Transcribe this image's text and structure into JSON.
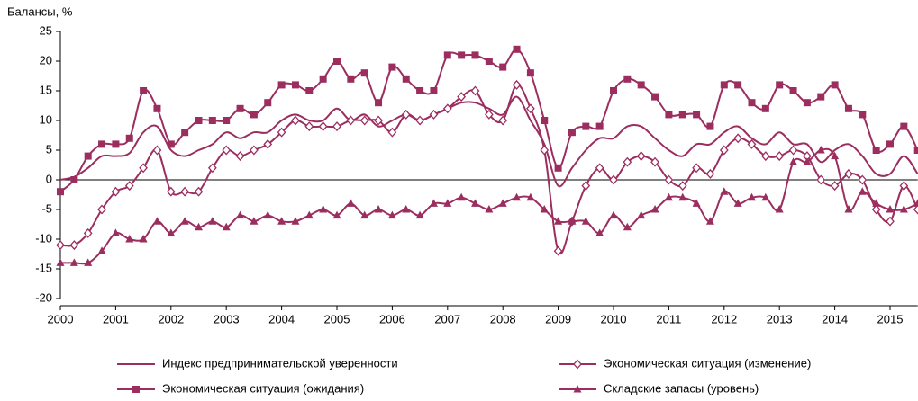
{
  "chart_data": {
    "type": "line",
    "y_axis_label": "Балансы, %",
    "x": [
      2000,
      2000.25,
      2000.5,
      2000.75,
      2001,
      2001.25,
      2001.5,
      2001.75,
      2002,
      2002.25,
      2002.5,
      2002.75,
      2003,
      2003.25,
      2003.5,
      2003.75,
      2004,
      2004.25,
      2004.5,
      2004.75,
      2005,
      2005.25,
      2005.5,
      2005.75,
      2006,
      2006.25,
      2006.5,
      2006.75,
      2007,
      2007.25,
      2007.5,
      2007.75,
      2008,
      2008.25,
      2008.5,
      2008.75,
      2009,
      2009.25,
      2009.5,
      2009.75,
      2010,
      2010.25,
      2010.5,
      2010.75,
      2011,
      2011.25,
      2011.5,
      2011.75,
      2012,
      2012.25,
      2012.5,
      2012.75,
      2013,
      2013.25,
      2013.5,
      2013.75,
      2014,
      2014.25,
      2014.5,
      2014.75,
      2015,
      2015.25,
      2015.5
    ],
    "xlim": [
      2000,
      2015.5
    ],
    "xticks": [
      2000,
      2001,
      2002,
      2003,
      2004,
      2005,
      2006,
      2007,
      2008,
      2009,
      2010,
      2011,
      2012,
      2013,
      2014,
      2015
    ],
    "ylim": [
      -20,
      25
    ],
    "yticks": [
      -20,
      -15,
      -10,
      -5,
      0,
      5,
      10,
      15,
      20,
      25
    ],
    "series": [
      {
        "name": "Индекс предпринимательской уверенности",
        "color": "#9b2d5f",
        "marker": "none",
        "values": [
          0,
          0.5,
          2,
          4,
          4,
          4.5,
          8,
          9,
          5,
          4,
          5,
          6,
          8,
          7,
          8,
          8,
          10,
          11,
          10,
          10,
          12,
          10,
          11,
          9,
          10,
          11,
          10,
          11,
          12,
          13,
          13,
          12,
          11,
          14,
          10,
          6,
          -1,
          2,
          5,
          7,
          7,
          9,
          9,
          7,
          5,
          4,
          6,
          6,
          8,
          9,
          7,
          6,
          8,
          6,
          6,
          3,
          5,
          6,
          4,
          1,
          1,
          4,
          1
        ]
      },
      {
        "name": "Экономическая ситуация (изменение)",
        "color": "#9b2d5f",
        "marker": "diamond",
        "values": [
          -11,
          -11,
          -9,
          -5,
          -2,
          -1,
          2,
          5,
          -2,
          -2,
          -2,
          2,
          5,
          4,
          5,
          6,
          8,
          10,
          9,
          9,
          9,
          10,
          10,
          10,
          8,
          11,
          10,
          11,
          12,
          14,
          15,
          11,
          10,
          16,
          12,
          5,
          -12,
          -7,
          -1,
          2,
          0,
          3,
          4,
          3,
          0,
          -1,
          2,
          1,
          5,
          7,
          6,
          4,
          4,
          5,
          4,
          0,
          -1,
          1,
          0,
          -5,
          -7,
          -1,
          -5
        ]
      },
      {
        "name": "Экономическая ситуация (ожидания)",
        "color": "#9b2d5f",
        "marker": "square",
        "values": [
          -2,
          0,
          4,
          6,
          6,
          7,
          15,
          12,
          6,
          8,
          10,
          10,
          10,
          12,
          11,
          13,
          16,
          16,
          15,
          17,
          20,
          17,
          18,
          13,
          19,
          17,
          15,
          15,
          21,
          21,
          21,
          20,
          19,
          22,
          18,
          10,
          2,
          8,
          9,
          9,
          15,
          17,
          16,
          14,
          11,
          11,
          11,
          9,
          16,
          16,
          13,
          12,
          16,
          15,
          13,
          14,
          16,
          12,
          11,
          5,
          6,
          9,
          5
        ]
      },
      {
        "name": "Складские запасы (уровень)",
        "color": "#9b2d5f",
        "marker": "triangle",
        "values": [
          -14,
          -14,
          -14,
          -12,
          -9,
          -10,
          -10,
          -7,
          -9,
          -7,
          -8,
          -7,
          -8,
          -6,
          -7,
          -6,
          -7,
          -7,
          -6,
          -5,
          -6,
          -4,
          -6,
          -5,
          -6,
          -5,
          -6,
          -4,
          -4,
          -3,
          -4,
          -5,
          -4,
          -3,
          -3,
          -5,
          -7,
          -7,
          -7,
          -9,
          -6,
          -8,
          -6,
          -5,
          -3,
          -3,
          -4,
          -7,
          -2,
          -4,
          -3,
          -3,
          -5,
          3,
          3,
          5,
          4,
          -5,
          -2,
          -4,
          -5,
          -5,
          -4
        ]
      }
    ]
  }
}
